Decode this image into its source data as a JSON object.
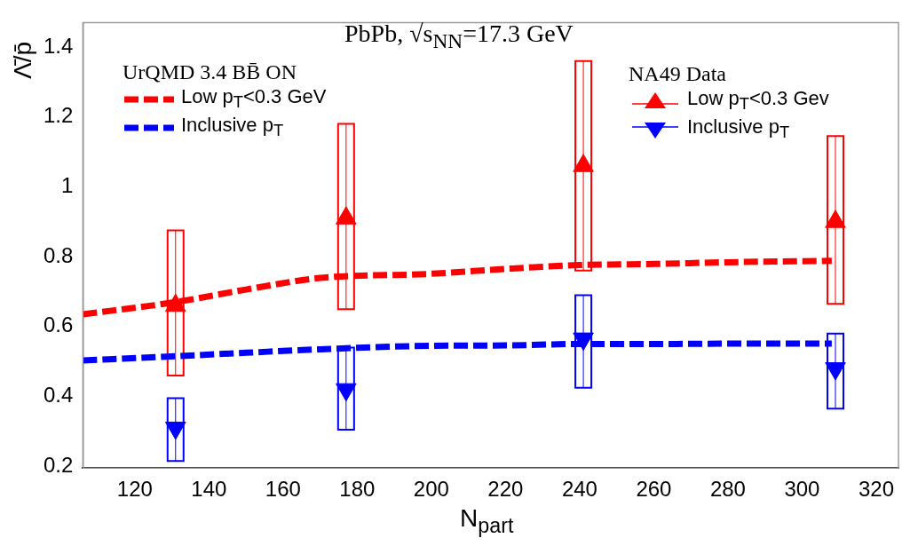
{
  "chart_data": {
    "type": "line",
    "title": "PbPb,  √s$_{NN}$=17.3 GeV",
    "xlabel": "N$_{part}$",
    "ylabel": "Λ̄/p̄",
    "xlim": [
      106,
      326
    ],
    "xticks": [
      120,
      140,
      160,
      180,
      200,
      220,
      240,
      260,
      280,
      300,
      320
    ],
    "ylim": [
      0.195,
      1.47
    ],
    "yticks": [
      0.2,
      0.4,
      0.6,
      0.8,
      {
        "value": 1,
        "label": "1"
      },
      1.2,
      1.4
    ],
    "grid": false,
    "legend": "top",
    "line_style": "dashed",
    "annotations": [
      "UrQMD 3.4 BB̄ ON",
      "NA49 Data"
    ],
    "series": [
      {
        "name": "Low p$_{T}$<0.3 GeV",
        "type": "line",
        "color": "#ff0000",
        "x": [
          106,
          131,
          150,
          170,
          200,
          220,
          240,
          260,
          280,
          308
        ],
        "values": [
          0.635,
          0.67,
          0.706,
          0.739,
          0.751,
          0.765,
          0.776,
          0.779,
          0.784,
          0.788
        ]
      },
      {
        "name": "Inclusive p$_{T}$",
        "type": "line",
        "color": "#0000ff",
        "x": [
          106,
          131,
          150,
          170,
          200,
          220,
          240,
          260,
          280,
          308
        ],
        "values": [
          0.503,
          0.515,
          0.525,
          0.535,
          0.545,
          0.546,
          0.55,
          0.55,
          0.551,
          0.551
        ]
      },
      {
        "name": "Low p$_{T}$<0.3 Gev",
        "type": "scatter",
        "marker": "triangle",
        "color": "#ff0000",
        "x": [
          131,
          177,
          241,
          309
        ],
        "values": [
          0.66,
          0.91,
          1.06,
          0.9
        ],
        "errors": [
          [
            0.46,
            0.875
          ],
          [
            0.65,
            1.18
          ],
          [
            0.76,
            1.36
          ],
          [
            0.665,
            1.145
          ]
        ]
      },
      {
        "name": "Inclusive p$_{T}$",
        "type": "scatter",
        "marker": "triangle-down",
        "color": "#0000ff",
        "x": [
          131,
          177,
          241,
          309
        ],
        "values": [
          0.31,
          0.42,
          0.565,
          0.48
        ],
        "errors": [
          [
            0.215,
            0.395
          ],
          [
            0.305,
            0.54
          ],
          [
            0.425,
            0.69
          ],
          [
            0.365,
            0.58
          ]
        ]
      }
    ]
  }
}
